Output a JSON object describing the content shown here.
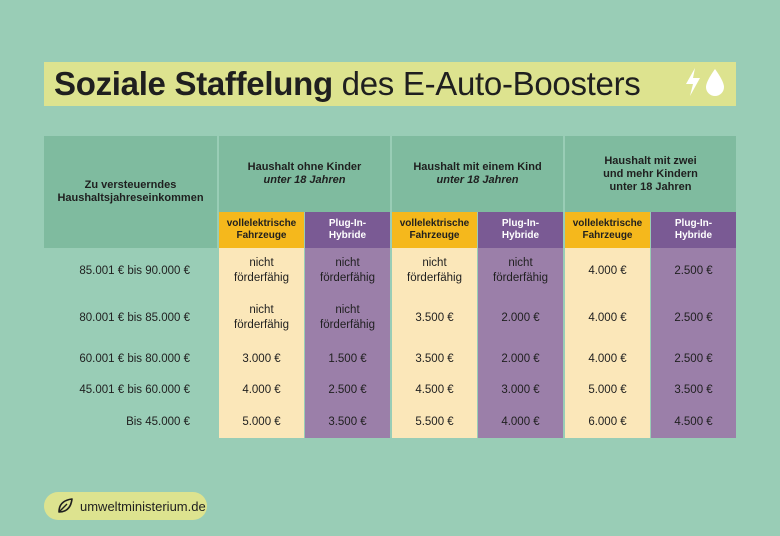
{
  "title": {
    "bold": "Soziale Staffelung",
    "rest": " des E-Auto-Boosters",
    "icons": [
      "lightning-icon",
      "drop-icon"
    ]
  },
  "table": {
    "income_header_line1": "Zu versteuerndes",
    "income_header_line2": "Haushaltsjahreseinkommen",
    "groups": [
      {
        "line1": "Haushalt ohne Kinder",
        "line2": "unter 18 Jahren"
      },
      {
        "line1": "Haushalt mit einem Kind",
        "line2": "unter 18 Jahren"
      },
      {
        "line1": "Haushalt mit zwei",
        "line2": "und mehr Kindern",
        "line3": "unter 18 Jahren"
      }
    ],
    "subheaders": {
      "el_line1": "vollelektrische",
      "el_line2": "Fahrzeuge",
      "ph_line1": "Plug-In-",
      "ph_line2": "Hybride"
    },
    "rows": [
      {
        "income": "85.001 € bis 90.000 €",
        "values": [
          [
            "nicht",
            "förderfähig"
          ],
          [
            "nicht",
            "förderfähig"
          ],
          [
            "nicht",
            "förderfähig"
          ],
          [
            "nicht",
            "förderfähig"
          ],
          [
            "4.000 €"
          ],
          [
            "2.500 €"
          ]
        ]
      },
      {
        "income": "80.001 € bis 85.000 €",
        "values": [
          [
            "nicht",
            "förderfähig"
          ],
          [
            "nicht",
            "förderfähig"
          ],
          [
            "3.500 €"
          ],
          [
            "2.000 €"
          ],
          [
            "4.000 €"
          ],
          [
            "2.500 €"
          ]
        ]
      },
      {
        "income": "60.001 € bis 80.000 €",
        "values": [
          [
            "3.000 €"
          ],
          [
            "1.500 €"
          ],
          [
            "3.500 €"
          ],
          [
            "2.000 €"
          ],
          [
            "4.000 €"
          ],
          [
            "2.500 €"
          ]
        ]
      },
      {
        "income": "45.001 € bis 60.000 €",
        "values": [
          [
            "4.000 €"
          ],
          [
            "2.500 €"
          ],
          [
            "4.500 €"
          ],
          [
            "3.000 €"
          ],
          [
            "5.000 €"
          ],
          [
            "3.500 €"
          ]
        ]
      },
      {
        "income": "Bis  45.000 €",
        "values": [
          [
            "5.000 €"
          ],
          [
            "3.500 €"
          ],
          [
            "5.500 €"
          ],
          [
            "4.000 €"
          ],
          [
            "6.000 €"
          ],
          [
            "4.500 €"
          ]
        ]
      }
    ]
  },
  "colors": {
    "background": "#99cdb6",
    "header": "#7fbb9f",
    "title_band": "#dde38f",
    "electric_header": "#f5b81c",
    "electric_cells": "#fbe7b9",
    "hybrid_header": "#7a5a94",
    "hybrid_cells": "#9b7fa9"
  },
  "footer": {
    "label": "umweltministerium.de",
    "icon": "leaf-icon"
  }
}
